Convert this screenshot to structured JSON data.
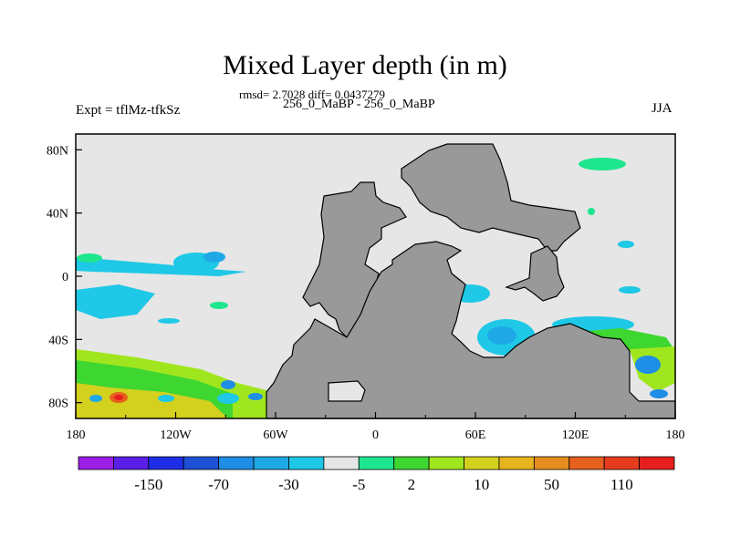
{
  "title": "Mixed Layer depth (in m)",
  "stats": "rmsd= 2.7028 diff= 0.0437279",
  "subtitle": "256_0_MaBP - 256_0_MaBP",
  "experiment": "Expt = tflMz-tfkSz",
  "season": "JJA",
  "map": {
    "type": "filled-contour-map",
    "xlabels": [
      "180",
      "120W",
      "60W",
      "0",
      "60E",
      "120E",
      "180"
    ],
    "ylabels": [
      "80N",
      "40N",
      "0",
      "40S",
      "80S"
    ],
    "lon_range": [
      -180,
      180
    ],
    "lat_range": [
      -90,
      90
    ],
    "land_color": "#999999",
    "ocean_color": "#e6e6e6"
  },
  "colorbar": {
    "labels": [
      "-150",
      "-70",
      "-30",
      "-5",
      "2",
      "10",
      "50",
      "110"
    ],
    "colors": [
      "#9a1ee6",
      "#5a1ee6",
      "#1e2ee6",
      "#1e50d6",
      "#1e8ee6",
      "#1ea8e6",
      "#1ec8e6",
      "#e6e6e6",
      "#1ee68e",
      "#3ed630",
      "#a0e61e",
      "#d4d01e",
      "#e6b41e",
      "#e68c1e",
      "#e6601e",
      "#e63c1e",
      "#e61e1e"
    ]
  }
}
